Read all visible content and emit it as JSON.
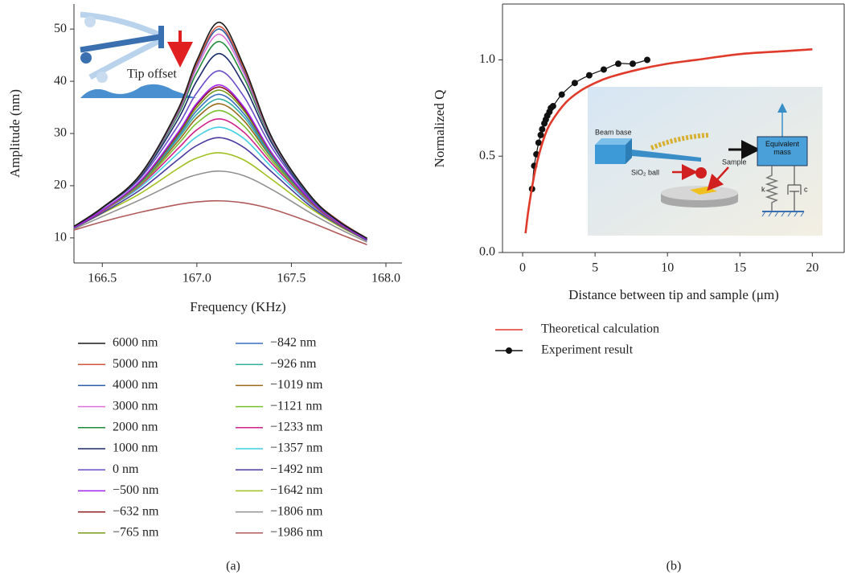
{
  "chart_data": [
    {
      "type": "line",
      "panel_label": "(a)",
      "xlabel": "Frequency (KHz)",
      "ylabel": "Amplitude (nm)",
      "annotation": "Tip offset",
      "xlim": [
        166.35,
        168.085
      ],
      "ylim": [
        5.2,
        54.8
      ],
      "xticks": [
        166.5,
        {
          "value": 167,
          "label": "167.0"
        },
        167.5,
        {
          "value": 168,
          "label": "168.0"
        }
      ],
      "yticks": [
        10,
        20,
        30,
        40,
        50
      ],
      "x": [
        166.35,
        166.5,
        166.7,
        166.9,
        167.0,
        167.12,
        167.25,
        167.4,
        167.6,
        167.75,
        167.9
      ],
      "series": [
        {
          "name": "6000 nm",
          "color": "#1a1a1a",
          "values": [
            12.2,
            15.8,
            22.1,
            34.6,
            44.0,
            51.3,
            42.8,
            29.0,
            18.1,
            13.2,
            9.9
          ]
        },
        {
          "name": "5000 nm",
          "color": "#d2553a",
          "values": [
            12.2,
            15.8,
            22.1,
            34.4,
            43.5,
            50.5,
            42.3,
            28.9,
            18.1,
            13.3,
            9.9
          ]
        },
        {
          "name": "4000 nm",
          "color": "#2a5ca8",
          "values": [
            12.2,
            15.8,
            22.1,
            34.2,
            43.2,
            50.0,
            42.0,
            28.8,
            18.0,
            13.3,
            9.9
          ]
        },
        {
          "name": "3000 nm",
          "color": "#e070d8",
          "values": [
            12.2,
            15.8,
            22.0,
            33.9,
            42.6,
            49.0,
            41.4,
            28.6,
            18.0,
            13.3,
            9.9
          ]
        },
        {
          "name": "2000 nm",
          "color": "#1f8a3a",
          "values": [
            12.2,
            15.8,
            21.9,
            33.5,
            41.7,
            47.6,
            40.6,
            28.4,
            17.9,
            13.2,
            9.9
          ]
        },
        {
          "name": "1000 nm",
          "color": "#1b2a6b",
          "values": [
            12.2,
            15.7,
            21.7,
            32.7,
            40.1,
            45.3,
            39.2,
            27.9,
            17.8,
            13.2,
            9.9
          ]
        },
        {
          "name": "0 nm",
          "color": "#6a4cc8",
          "values": [
            12.2,
            15.7,
            21.4,
            31.5,
            37.8,
            42.0,
            37.0,
            27.1,
            17.6,
            13.1,
            9.9
          ]
        },
        {
          "name": "−500 nm",
          "color": "#a020f0",
          "values": [
            12.0,
            15.3,
            20.9,
            30.2,
            35.8,
            39.3,
            35.0,
            26.1,
            17.3,
            12.9,
            9.7
          ]
        },
        {
          "name": "−632 nm",
          "color": "#8b1a1a",
          "values": [
            12.0,
            15.3,
            20.8,
            30.0,
            35.5,
            38.9,
            34.7,
            26.0,
            17.2,
            12.9,
            9.7
          ]
        },
        {
          "name": "−765 nm",
          "color": "#7a9a1a",
          "values": [
            12.0,
            15.3,
            20.7,
            29.7,
            35.0,
            38.3,
            34.3,
            25.8,
            17.2,
            12.9,
            9.7
          ]
        },
        {
          "name": "−842 nm",
          "color": "#3a6fc0",
          "values": [
            12.0,
            15.3,
            20.6,
            29.4,
            34.4,
            37.5,
            33.7,
            25.6,
            17.1,
            12.9,
            9.7
          ]
        },
        {
          "name": "−926 nm",
          "color": "#30b0a0",
          "values": [
            12.0,
            15.3,
            20.5,
            29.0,
            33.7,
            36.6,
            33.1,
            25.3,
            17.1,
            12.9,
            9.7
          ]
        },
        {
          "name": "−1019 nm",
          "color": "#9a6a1a",
          "values": [
            12.0,
            15.2,
            20.4,
            28.5,
            33.0,
            35.7,
            32.4,
            25.1,
            17.0,
            12.8,
            9.7
          ]
        },
        {
          "name": "−1121 nm",
          "color": "#7ac030",
          "values": [
            12.0,
            15.2,
            20.2,
            27.9,
            32.0,
            34.4,
            31.4,
            24.6,
            16.9,
            12.8,
            9.7
          ]
        },
        {
          "name": "−1233 nm",
          "color": "#d0208a",
          "values": [
            12.0,
            15.1,
            20.0,
            27.1,
            30.7,
            32.8,
            30.2,
            24.1,
            16.7,
            12.7,
            9.7
          ]
        },
        {
          "name": "−1357 nm",
          "color": "#40d0e0",
          "values": [
            12.0,
            15.1,
            19.7,
            26.2,
            29.4,
            31.2,
            29.0,
            23.4,
            16.5,
            12.7,
            9.7
          ]
        },
        {
          "name": "−1492 nm",
          "color": "#4a3aa0",
          "values": [
            11.9,
            14.8,
            19.2,
            25.0,
            27.7,
            29.2,
            27.3,
            22.5,
            16.1,
            12.5,
            9.5
          ]
        },
        {
          "name": "−1642 nm",
          "color": "#a0c020",
          "values": [
            11.9,
            14.7,
            18.5,
            23.3,
            25.3,
            26.3,
            24.9,
            21.1,
            15.7,
            12.3,
            9.5
          ]
        },
        {
          "name": "−1806 nm",
          "color": "#909090",
          "values": [
            11.7,
            14.1,
            17.3,
            20.8,
            22.1,
            22.8,
            21.9,
            19.2,
            14.8,
            11.8,
            9.2
          ]
        },
        {
          "name": "−1986 nm",
          "color": "#b05a5a",
          "values": [
            11.5,
            13.1,
            14.9,
            16.4,
            16.9,
            17.1,
            16.7,
            15.5,
            13.0,
            10.8,
            8.7
          ]
        }
      ]
    },
    {
      "type": "line",
      "panel_label": "(b)",
      "xlabel": "Distance between tip and sample (μm)",
      "ylabel": "Normalized Q",
      "xlim": [
        -1.39,
        22.2
      ],
      "ylim": [
        0,
        1.29
      ],
      "xticks": [
        0,
        5,
        10,
        15,
        20
      ],
      "yticks": [
        {
          "value": 0,
          "label": "0.0"
        },
        {
          "value": 0.5,
          "label": "0.5"
        },
        {
          "value": 1,
          "label": "1.0"
        }
      ],
      "inset": [
        "Beam base",
        "SiO₂ ball",
        "Sample",
        "Equivalent mass",
        "k",
        "c"
      ],
      "series": [
        {
          "name": "Theoretical calculation",
          "color": "#e03a2a",
          "x": [
            0.2,
            0.4,
            0.7,
            1,
            1.5,
            2,
            3,
            4,
            5,
            6,
            8,
            10,
            12,
            15,
            18,
            20
          ],
          "values": [
            0.1,
            0.22,
            0.36,
            0.47,
            0.6,
            0.68,
            0.78,
            0.84,
            0.88,
            0.91,
            0.95,
            0.98,
            1.0,
            1.03,
            1.045,
            1.055
          ]
        },
        {
          "name": "Experiment result",
          "color": "#111111",
          "marker": "circle",
          "x": [
            0.65,
            0.8,
            0.95,
            1.1,
            1.25,
            1.35,
            1.5,
            1.6,
            1.7,
            1.85,
            1.95,
            2.1,
            2.7,
            3.6,
            4.6,
            5.6,
            6.6,
            7.6,
            8.6
          ],
          "values": [
            0.33,
            0.45,
            0.51,
            0.57,
            0.61,
            0.64,
            0.67,
            0.69,
            0.71,
            0.73,
            0.75,
            0.76,
            0.82,
            0.88,
            0.92,
            0.95,
            0.98,
            0.98,
            1.0
          ]
        }
      ]
    }
  ]
}
